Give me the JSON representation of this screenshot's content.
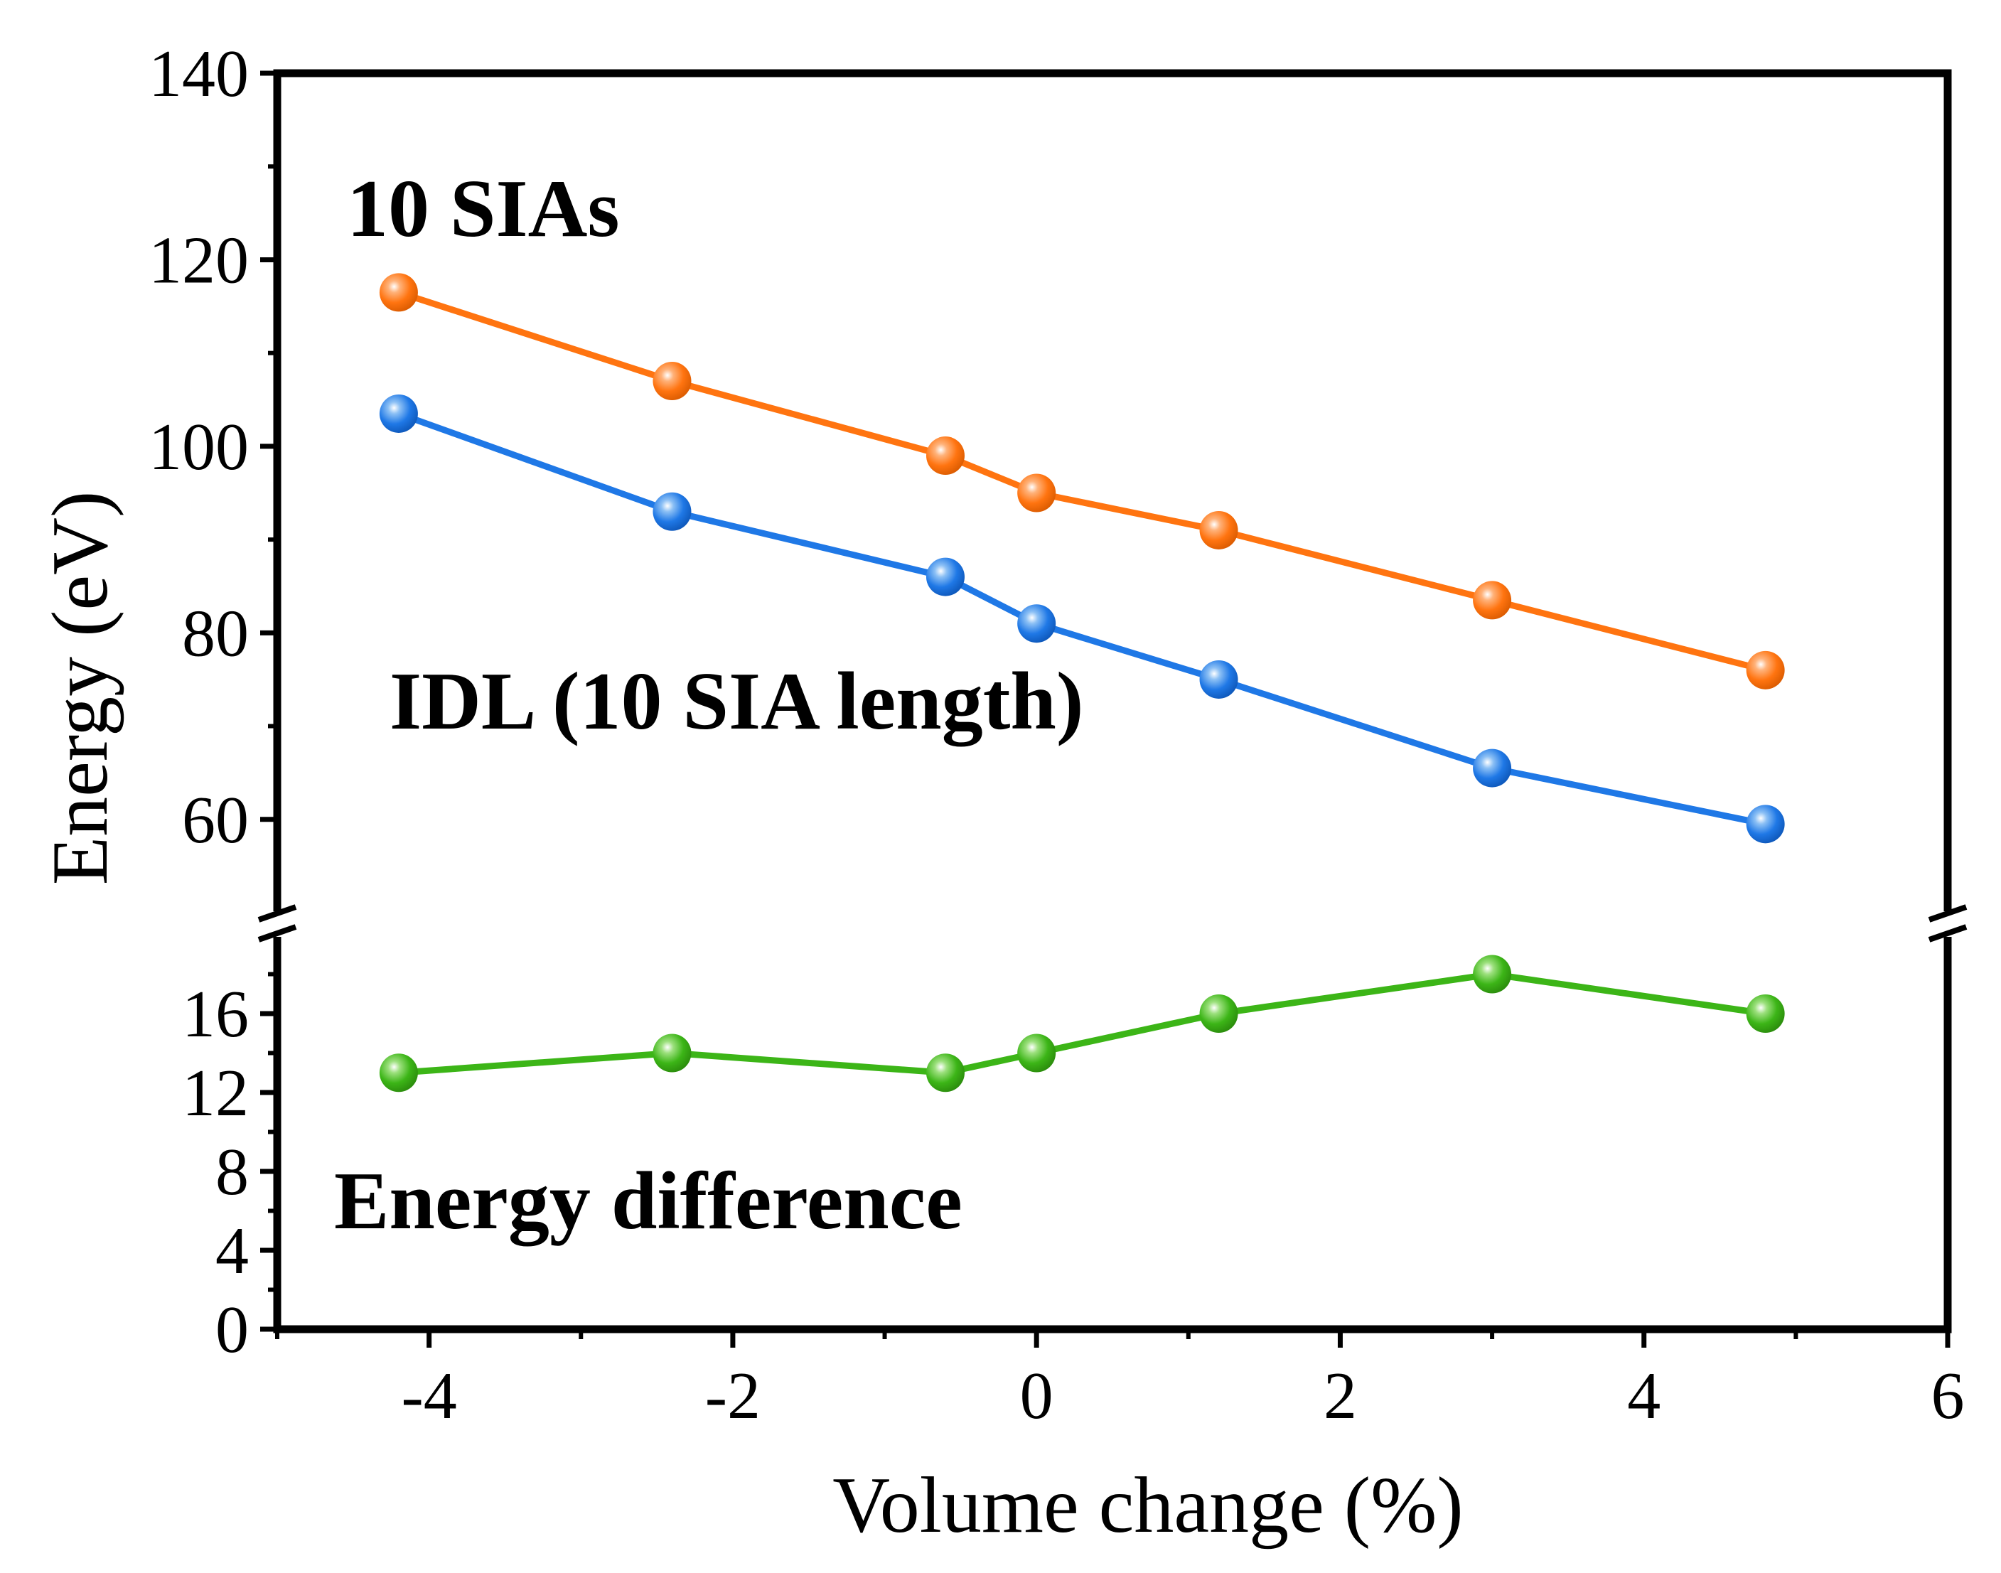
{
  "chart_data": {
    "type": "line",
    "xlabel": "Volume change (%)",
    "ylabel": "Energy (eV)",
    "xlim": [
      -5,
      6
    ],
    "x_ticks": [
      -4,
      -2,
      0,
      2,
      4,
      6
    ],
    "x_tick_labels": [
      "-4",
      "-2",
      "0",
      "2",
      "4",
      "6"
    ],
    "y_axis_break": true,
    "upper_panel": {
      "ylim": [
        50,
        140
      ],
      "y_ticks": [
        60,
        80,
        100,
        120,
        140
      ],
      "y_tick_labels": [
        "60",
        "80",
        "100",
        "120",
        "140"
      ]
    },
    "lower_panel": {
      "ylim": [
        0,
        20
      ],
      "y_ticks": [
        0,
        4,
        8,
        12,
        16
      ],
      "y_tick_labels": [
        "0",
        "4",
        "8",
        "12",
        "16"
      ]
    },
    "x": [
      -4.2,
      -2.4,
      -0.6,
      0,
      1.2,
      3,
      4.8
    ],
    "series": [
      {
        "name": "10 SIAs",
        "panel": "upper",
        "color": "#FF7410",
        "values": [
          116.5,
          107,
          99,
          95,
          91,
          83.5,
          76
        ]
      },
      {
        "name": "IDL (10 SIA length)",
        "panel": "upper",
        "color": "#1F78E6",
        "values": [
          103.5,
          93,
          86,
          81,
          75,
          65.5,
          59.5
        ]
      },
      {
        "name": "Energy difference",
        "panel": "lower",
        "color": "#3CB517",
        "values": [
          13,
          14,
          13,
          14,
          16,
          18,
          16
        ]
      }
    ],
    "annotations": [
      {
        "text": "10 SIAs",
        "color": "#FF7410"
      },
      {
        "text": "IDL (10 SIA length)",
        "color": "#0A1FE8"
      },
      {
        "text": "Energy difference",
        "color": "#3AA312"
      }
    ]
  }
}
